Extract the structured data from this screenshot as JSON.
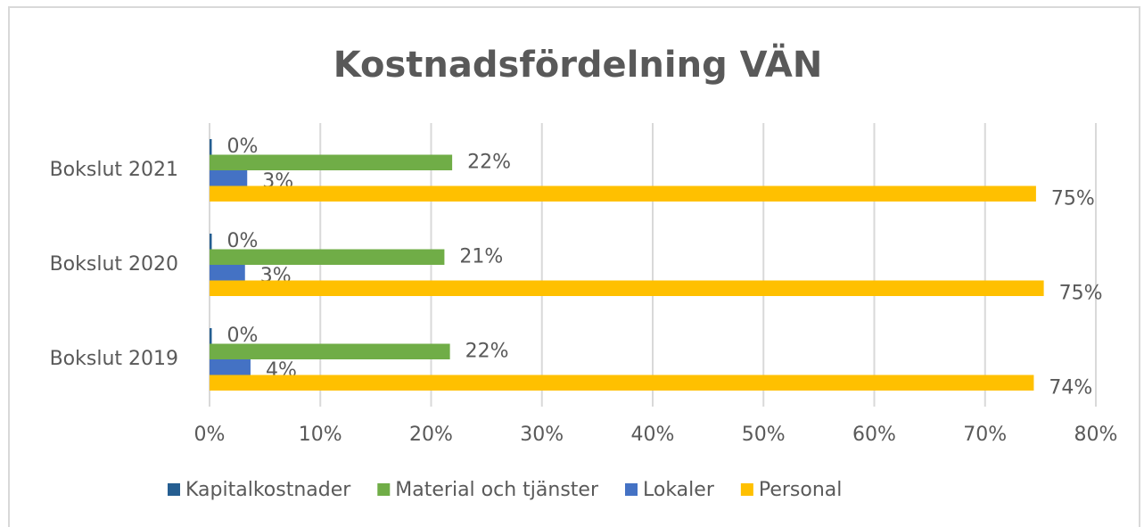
{
  "chart_data": {
    "type": "bar",
    "orientation": "horizontal",
    "title": "Kostnadsfördelning VÄN",
    "categories": [
      "Bokslut 2019",
      "Bokslut 2020",
      "Bokslut 2021"
    ],
    "series": [
      {
        "name": "Kapitalkostnader",
        "color": "#255e91",
        "values": [
          0.2,
          0.2,
          0.2
        ],
        "value_labels": [
          "0%",
          "0%",
          "0%"
        ]
      },
      {
        "name": "Material och tjänster",
        "color": "#70ad47",
        "values": [
          21.7,
          21.2,
          21.9
        ],
        "value_labels": [
          "22%",
          "21%",
          "22%"
        ]
      },
      {
        "name": "Lokaler",
        "color": "#4472c4",
        "values": [
          3.7,
          3.2,
          3.4
        ],
        "value_labels": [
          "4%",
          "3%",
          "3%"
        ]
      },
      {
        "name": "Personal",
        "color": "#ffc000",
        "values": [
          74.4,
          75.3,
          74.6
        ],
        "value_labels": [
          "74%",
          "75%",
          "75%"
        ]
      }
    ],
    "xlim": [
      0,
      80
    ],
    "xticks": [
      {
        "value": 0,
        "label": "0%"
      },
      {
        "value": 10,
        "label": "10%"
      },
      {
        "value": 20,
        "label": "20%"
      },
      {
        "value": 30,
        "label": "30%"
      },
      {
        "value": 40,
        "label": "40%"
      },
      {
        "value": 50,
        "label": "50%"
      },
      {
        "value": 60,
        "label": "60%"
      },
      {
        "value": 70,
        "label": "70%"
      },
      {
        "value": 80,
        "label": "80%"
      }
    ],
    "grid": true,
    "legend": "bottom"
  }
}
